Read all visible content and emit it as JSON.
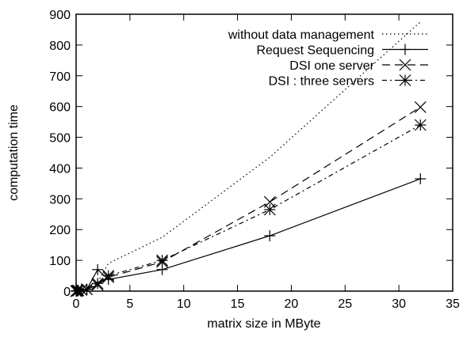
{
  "chart_data": {
    "type": "line",
    "xlabel": "matrix size in MByte",
    "ylabel": "computation time",
    "xlim": [
      0,
      35
    ],
    "ylim": [
      0,
      900
    ],
    "xticks": [
      0,
      5,
      10,
      15,
      20,
      25,
      30,
      35
    ],
    "yticks": [
      0,
      100,
      200,
      300,
      400,
      500,
      600,
      700,
      800,
      900
    ],
    "grid": false,
    "legend_position": "top-right",
    "series": [
      {
        "name": "without data management",
        "style": "dotted",
        "marker": "none",
        "x": [
          0,
          0.1,
          0.2,
          0.5,
          1,
          2,
          3,
          8,
          18,
          32
        ],
        "y": [
          0,
          0.5,
          1,
          3,
          8,
          28,
          90,
          175,
          435,
          875
        ]
      },
      {
        "name": "Request Sequencing",
        "style": "solid",
        "marker": "plus",
        "x": [
          0,
          0.1,
          0.2,
          0.5,
          1,
          2,
          3,
          8,
          18,
          32
        ],
        "y": [
          0,
          1,
          2,
          4,
          6,
          70,
          38,
          70,
          180,
          365
        ]
      },
      {
        "name": "DSI one server",
        "style": "dashed",
        "marker": "cross",
        "x": [
          0,
          0.1,
          0.2,
          0.5,
          1,
          2,
          3,
          8,
          18,
          32
        ],
        "y": [
          0,
          1,
          2,
          4,
          6,
          20,
          45,
          95,
          290,
          598
        ]
      },
      {
        "name": "DSI : three servers",
        "style": "dashdot",
        "marker": "star",
        "x": [
          0,
          0.1,
          0.2,
          0.5,
          1,
          2,
          3,
          8,
          18,
          32
        ],
        "y": [
          0,
          1,
          2,
          4,
          6,
          25,
          50,
          100,
          265,
          540
        ]
      }
    ]
  }
}
